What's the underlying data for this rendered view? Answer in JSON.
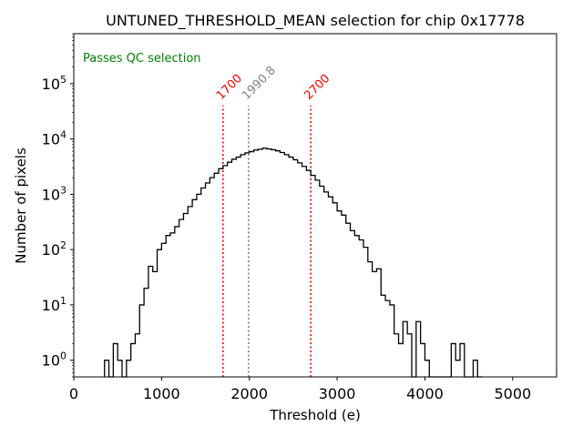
{
  "chart_data": {
    "type": "histogram",
    "title": "UNTUNED_THRESHOLD_MEAN selection for chip 0x17778",
    "xlabel": "Threshold (e)",
    "ylabel": "Number of pixels",
    "xlim": [
      0,
      5500
    ],
    "ylim": [
      0.5,
      800000
    ],
    "yscale": "log",
    "x_ticks": [
      0,
      1000,
      2000,
      3000,
      4000,
      5000
    ],
    "x_tick_labels": [
      "0",
      "1000",
      "2000",
      "3000",
      "4000",
      "5000"
    ],
    "y_ticks": [
      1,
      10,
      100,
      1000,
      10000,
      100000
    ],
    "y_tick_labels": [
      {
        "base": "10",
        "exp": "0"
      },
      {
        "base": "10",
        "exp": "1"
      },
      {
        "base": "10",
        "exp": "2"
      },
      {
        "base": "10",
        "exp": "3"
      },
      {
        "base": "10",
        "exp": "4"
      },
      {
        "base": "10",
        "exp": "5"
      }
    ],
    "grid": false,
    "bin_width": 50,
    "bin_start": 350,
    "counts": [
      1,
      0,
      2,
      1,
      0,
      1,
      2,
      3,
      10,
      20,
      50,
      40,
      100,
      130,
      180,
      200,
      260,
      350,
      450,
      600,
      800,
      1000,
      1300,
      1600,
      2000,
      2400,
      2900,
      3300,
      3800,
      4300,
      4700,
      5200,
      5600,
      5900,
      6300,
      6500,
      6800,
      6600,
      6400,
      6100,
      5700,
      5200,
      4700,
      4200,
      3700,
      3200,
      2700,
      2200,
      1800,
      1400,
      1100,
      900,
      700,
      500,
      420,
      300,
      220,
      180,
      150,
      110,
      60,
      40,
      45,
      15,
      12,
      10,
      3,
      2,
      5,
      3,
      0,
      5,
      2,
      1,
      0,
      0,
      0,
      0,
      0,
      2,
      1,
      2,
      0,
      0,
      1,
      0
    ],
    "vlines": [
      {
        "x": 1700,
        "label": "1700",
        "color": "#ff0000",
        "role": "lower-cut"
      },
      {
        "x": 1990.8,
        "label": "1990.8",
        "color": "#808080",
        "role": "mean"
      },
      {
        "x": 2700,
        "label": "2700",
        "color": "#ff0000",
        "role": "upper-cut"
      }
    ],
    "annotation": {
      "text": "Passes QC selection",
      "color": "#008000",
      "position": "top-left"
    },
    "line_color": "#000000"
  }
}
